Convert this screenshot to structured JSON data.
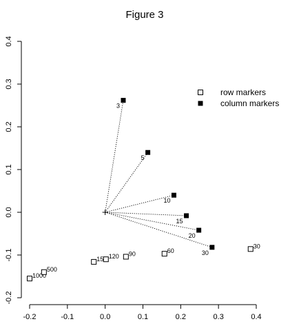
{
  "chart_data": {
    "type": "scatter",
    "title": "Figure 3",
    "xlabel": "",
    "ylabel": "",
    "xlim": [
      -0.2,
      0.4
    ],
    "ylim": [
      -0.2,
      0.4
    ],
    "x_ticks": [
      -0.2,
      -0.1,
      0.0,
      0.1,
      0.2,
      0.3,
      0.4
    ],
    "x_tick_labels": [
      "-0.2",
      "-0.1",
      "0.0",
      "0.1",
      "0.2",
      "0.3",
      "0.4"
    ],
    "y_ticks": [
      -0.2,
      -0.1,
      0.0,
      0.1,
      0.2,
      0.3,
      0.4
    ],
    "y_tick_labels": [
      "-0.2",
      "-0.1",
      "0.0",
      "0.1",
      "0.2",
      "0.3",
      "0.4"
    ],
    "origin_marker": "+",
    "legend": {
      "position": "top-right",
      "entries": [
        {
          "label": "row markers",
          "marker": "open-square"
        },
        {
          "label": "column markers",
          "marker": "filled-square"
        }
      ]
    },
    "series": [
      {
        "name": "row markers",
        "marker": "open-square",
        "points": [
          {
            "x": -0.2,
            "y": -0.155,
            "label": "1000"
          },
          {
            "x": -0.162,
            "y": -0.14,
            "label": "500"
          },
          {
            "x": -0.03,
            "y": -0.116,
            "label": "150"
          },
          {
            "x": 0.002,
            "y": -0.11,
            "label": "120"
          },
          {
            "x": 0.055,
            "y": -0.104,
            "label": "90"
          },
          {
            "x": 0.157,
            "y": -0.097,
            "label": "60"
          },
          {
            "x": 0.385,
            "y": -0.086,
            "label": "30"
          }
        ]
      },
      {
        "name": "column markers",
        "marker": "filled-square",
        "points": [
          {
            "x": 0.048,
            "y": 0.262,
            "label": "3"
          },
          {
            "x": 0.113,
            "y": 0.14,
            "label": "5"
          },
          {
            "x": 0.182,
            "y": 0.04,
            "label": "10"
          },
          {
            "x": 0.215,
            "y": -0.008,
            "label": "15"
          },
          {
            "x": 0.248,
            "y": -0.042,
            "label": "20"
          },
          {
            "x": 0.283,
            "y": -0.082,
            "label": "30"
          }
        ],
        "connector": "dotted lines from origin"
      }
    ]
  }
}
